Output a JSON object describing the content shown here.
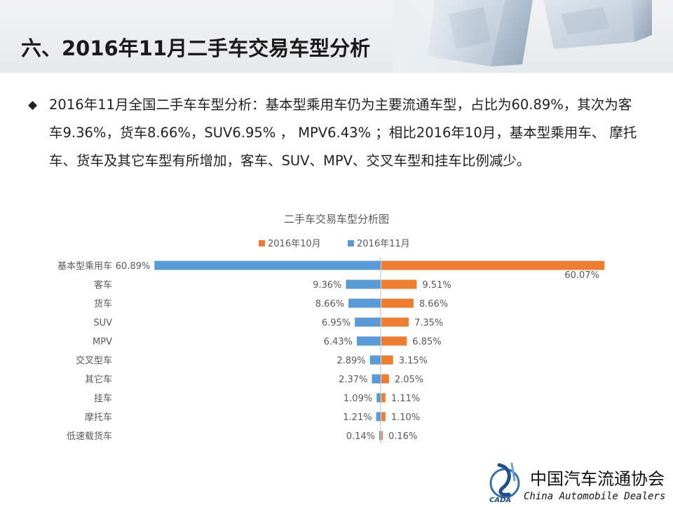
{
  "page": {
    "title": "六、2016年11月二手车交易车型分析",
    "summary": "2016年11月全国二手车车型分析：基本型乘用车仍为主要流通车型，占比为60.89%，其次为客车9.36%，货车8.66%，SUV6.95% ， MPV6.43% ；相比2016年10月，基本型乘用车、 摩托车、货车及其它车型有所增加，客车、SUV、MPV、交叉车型和挂车比例减少。",
    "bullet_icon": "diamond-bullet-icon"
  },
  "logo": {
    "name_cn": "中国汽车流通协会",
    "name_en": "China  Automobile Dealers",
    "emblem_text": "CADA",
    "icon": "cada-emblem-icon"
  },
  "colors": {
    "oct": "#ED7D31",
    "nov": "#5B9BD5",
    "axis": "#bfbfbf",
    "text": "#595959"
  },
  "chart_data": {
    "type": "bar",
    "orientation": "horizontal",
    "layout": "diverging",
    "title": "二手车交易车型分析图",
    "legend_position": "top",
    "categories": [
      "基本型乘用车",
      "客车",
      "货车",
      "SUV",
      "MPV",
      "交叉型车",
      "其它车",
      "挂车",
      "摩托车",
      "低速载货车"
    ],
    "series": [
      {
        "name": "2016年10月",
        "side": "right",
        "values": [
          60.07,
          9.51,
          8.66,
          7.35,
          6.85,
          3.15,
          2.05,
          1.11,
          1.1,
          0.16
        ],
        "labels": [
          "60.07%",
          "9.51%",
          "8.66%",
          "7.35%",
          "6.85%",
          "3.15%",
          "2.05%",
          "1.11%",
          "1.10%",
          "0.16%"
        ]
      },
      {
        "name": "2016年11月",
        "side": "left",
        "values": [
          60.89,
          9.36,
          8.66,
          6.95,
          6.43,
          2.89,
          2.37,
          1.09,
          1.21,
          0.14
        ],
        "labels": [
          "60.89%",
          "9.36%",
          "8.66%",
          "6.95%",
          "6.43%",
          "2.89%",
          "2.37%",
          "1.09%",
          "1.21%",
          "0.14%"
        ]
      }
    ],
    "unit": "%",
    "grid": false
  }
}
